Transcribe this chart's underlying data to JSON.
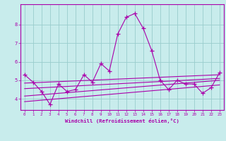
{
  "xlabel": "Windchill (Refroidissement éolien,°C)",
  "xlim": [
    -0.5,
    23.5
  ],
  "ylim": [
    3.4,
    9.1
  ],
  "yticks": [
    4,
    5,
    6,
    7,
    8
  ],
  "xticks": [
    0,
    1,
    2,
    3,
    4,
    5,
    6,
    7,
    8,
    9,
    10,
    11,
    12,
    13,
    14,
    15,
    16,
    17,
    18,
    19,
    20,
    21,
    22,
    23
  ],
  "bg_color": "#c8ecec",
  "line_color": "#aa00aa",
  "grid_color": "#99cccc",
  "main_line": {
    "x": [
      0,
      1,
      2,
      3,
      4,
      5,
      6,
      7,
      8,
      9,
      10,
      11,
      12,
      13,
      14,
      15,
      16,
      17,
      18,
      19,
      20,
      21,
      22,
      23
    ],
    "y": [
      5.3,
      4.9,
      4.4,
      3.7,
      4.8,
      4.4,
      4.5,
      5.3,
      4.9,
      5.9,
      5.5,
      7.5,
      8.4,
      8.6,
      7.8,
      6.6,
      5.0,
      4.5,
      5.0,
      4.8,
      4.8,
      4.3,
      4.6,
      5.4
    ]
  },
  "trend_lines": [
    {
      "x": [
        0,
        23
      ],
      "y": [
        4.85,
        5.3
      ]
    },
    {
      "x": [
        0,
        23
      ],
      "y": [
        4.55,
        5.1
      ]
    },
    {
      "x": [
        0,
        23
      ],
      "y": [
        3.85,
        4.75
      ]
    },
    {
      "x": [
        0,
        23
      ],
      "y": [
        4.15,
        5.0
      ]
    }
  ],
  "figsize": [
    3.2,
    2.0
  ],
  "dpi": 100
}
